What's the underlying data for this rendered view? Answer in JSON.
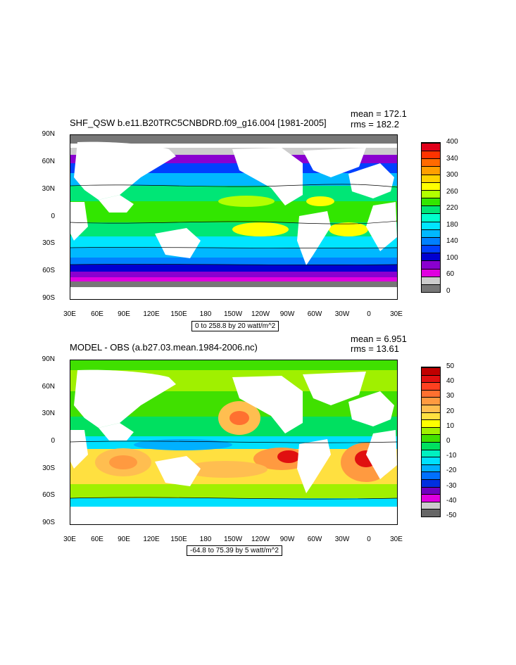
{
  "panels": [
    {
      "title": "SHF_QSW b.e11.B20TRC5CNBDRD.f09_g16.004 [1981-2005]",
      "mean": "mean = 172.1",
      "rms": "rms = 182.2",
      "info": "0 to 258.8 by 20 watt/m^2",
      "yticks": [
        "90N",
        "60N",
        "30N",
        "0",
        "30S",
        "60S",
        "90S"
      ],
      "xticks": [
        "30E",
        "60E",
        "90E",
        "120E",
        "150E",
        "180",
        "150W",
        "120W",
        "90W",
        "60W",
        "30W",
        "0",
        "30E"
      ],
      "colorbar": {
        "labels": [
          "400",
          "340",
          "300",
          "260",
          "220",
          "180",
          "140",
          "100",
          "60",
          "0"
        ],
        "colors": [
          "#e0001a",
          "#ff3300",
          "#ff6a00",
          "#ff9f00",
          "#ffd400",
          "#ffff00",
          "#b2ff00",
          "#32e600",
          "#00e676",
          "#00ffcc",
          "#00e5ff",
          "#00b8ff",
          "#0080ff",
          "#0040ff",
          "#0000d0",
          "#8a00d0",
          "#e000e0",
          "#cccccc",
          "#777777"
        ]
      }
    },
    {
      "title": "MODEL - OBS (a.b27.03.mean.1984-2006.nc)",
      "mean": "mean = 6.951",
      "rms": "rms = 13.61",
      "info": "-64.8 to 75.39 by 5 watt/m^2",
      "yticks": [
        "90N",
        "60N",
        "30N",
        "0",
        "30S",
        "60S",
        "90S"
      ],
      "xticks": [
        "30E",
        "60E",
        "90E",
        "120E",
        "150E",
        "180",
        "150W",
        "120W",
        "90W",
        "60W",
        "30W",
        "0",
        "30E"
      ],
      "colorbar": {
        "labels": [
          "50",
          "40",
          "30",
          "20",
          "10",
          "0",
          "-10",
          "-20",
          "-30",
          "-40",
          "-50"
        ],
        "colors": [
          "#c00000",
          "#e01010",
          "#ff4020",
          "#ff7030",
          "#ff9a40",
          "#ffbe50",
          "#ffe040",
          "#ffff00",
          "#a0f000",
          "#40e000",
          "#00e060",
          "#00f0c0",
          "#00e0ff",
          "#00b0ff",
          "#0070ff",
          "#0030e0",
          "#7000c0",
          "#e000e0",
          "#cccccc",
          "#666666"
        ]
      }
    }
  ]
}
